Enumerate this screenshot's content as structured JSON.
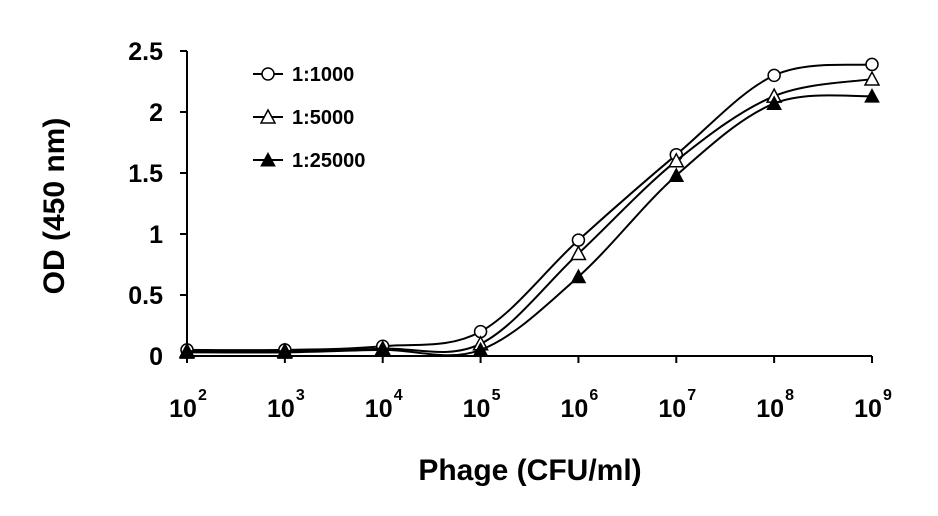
{
  "chart_data": {
    "type": "line",
    "title": "",
    "xlabel": "Phage (CFU/ml)",
    "ylabel": "OD (450 nm)",
    "xscale": "log",
    "xlim": [
      100,
      1000000000
    ],
    "ylim": [
      0,
      2.5
    ],
    "x": [
      100,
      1000,
      10000,
      100000,
      1000000,
      10000000,
      100000000,
      1000000000
    ],
    "x_tick_labels": [
      {
        "base": "10",
        "exp": "2"
      },
      {
        "base": "10",
        "exp": "3"
      },
      {
        "base": "10",
        "exp": "4"
      },
      {
        "base": "10",
        "exp": "5"
      },
      {
        "base": "10",
        "exp": "6"
      },
      {
        "base": "10",
        "exp": "7"
      },
      {
        "base": "10",
        "exp": "8"
      },
      {
        "base": "10",
        "exp": "9"
      }
    ],
    "y_ticks": [
      0,
      0.5,
      1,
      1.5,
      2,
      2.5
    ],
    "y_tick_labels": [
      "0",
      "0.5",
      "1",
      "1.5",
      "2",
      "2.5"
    ],
    "legend_position": "top-left",
    "series": [
      {
        "name": "1:1000",
        "marker": "circle-open",
        "values": [
          0.05,
          0.05,
          0.08,
          0.2,
          0.95,
          1.65,
          2.3,
          2.39
        ]
      },
      {
        "name": "1:5000",
        "marker": "triangle-open",
        "values": [
          0.04,
          0.04,
          0.06,
          0.1,
          0.84,
          1.6,
          2.13,
          2.27
        ]
      },
      {
        "name": "1:25000",
        "marker": "triangle-filled",
        "values": [
          0.03,
          0.03,
          0.05,
          0.05,
          0.65,
          1.48,
          2.07,
          2.13
        ]
      }
    ]
  }
}
